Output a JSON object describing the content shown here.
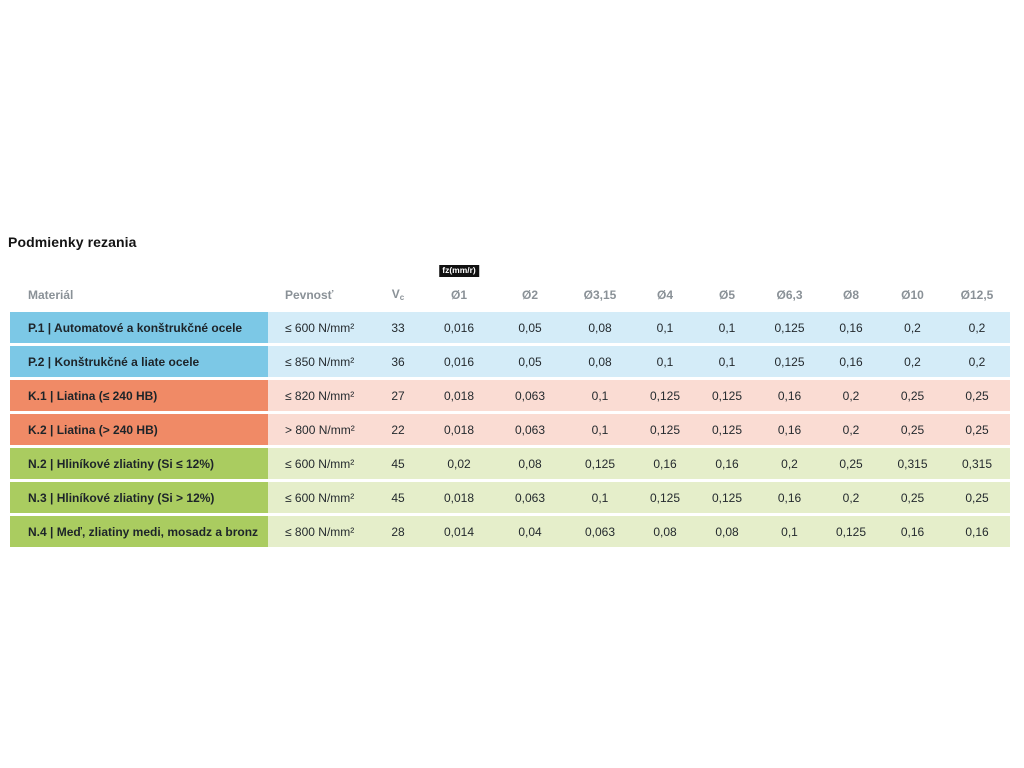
{
  "page": {
    "title": "Podmienky rezania"
  },
  "table": {
    "badge_label": "fz(mm/r)",
    "badge_colors": {
      "background": "#111111",
      "text": "#ffffff"
    },
    "headers": {
      "material": "Materiál",
      "pevnost": "Pevnosť",
      "vc_base": "V",
      "vc_sub": "c",
      "diameters": [
        "Ø1",
        "Ø2",
        "Ø3,15",
        "Ø4",
        "Ø5",
        "Ø6,3",
        "Ø8",
        "Ø10",
        "Ø12,5"
      ]
    },
    "header_text_color": "#8a9197",
    "body_text_color": "#242a2e",
    "group_colors": {
      "P": {
        "label_bg": "#7cc8e6",
        "cells_bg": "#d4ecf8"
      },
      "K": {
        "label_bg": "#f08a66",
        "cells_bg": "#fadcd3"
      },
      "N": {
        "label_bg": "#aacc60",
        "cells_bg": "#e5eeca"
      }
    },
    "rows": [
      {
        "group": "P",
        "material": "P.1 | Automatové a konštrukčné ocele",
        "pevnost": "≤ 600 N/mm²",
        "vc": "33",
        "values": [
          "0,016",
          "0,05",
          "0,08",
          "0,1",
          "0,1",
          "0,125",
          "0,16",
          "0,2",
          "0,2"
        ]
      },
      {
        "group": "P",
        "material": "P.2 | Konštrukčné a liate ocele",
        "pevnost": "≤ 850 N/mm²",
        "vc": "36",
        "values": [
          "0,016",
          "0,05",
          "0,08",
          "0,1",
          "0,1",
          "0,125",
          "0,16",
          "0,2",
          "0,2"
        ]
      },
      {
        "group": "K",
        "material": "K.1 | Liatina (≤ 240 HB)",
        "pevnost": "≤ 820 N/mm²",
        "vc": "27",
        "values": [
          "0,018",
          "0,063",
          "0,1",
          "0,125",
          "0,125",
          "0,16",
          "0,2",
          "0,25",
          "0,25"
        ]
      },
      {
        "group": "K",
        "material": "K.2 | Liatina (> 240 HB)",
        "pevnost": "> 800 N/mm²",
        "vc": "22",
        "values": [
          "0,018",
          "0,063",
          "0,1",
          "0,125",
          "0,125",
          "0,16",
          "0,2",
          "0,25",
          "0,25"
        ]
      },
      {
        "group": "N",
        "material": "N.2 | Hliníkové zliatiny (Si ≤ 12%)",
        "pevnost": "≤ 600 N/mm²",
        "vc": "45",
        "values": [
          "0,02",
          "0,08",
          "0,125",
          "0,16",
          "0,16",
          "0,2",
          "0,25",
          "0,315",
          "0,315"
        ]
      },
      {
        "group": "N",
        "material": "N.3 | Hliníkové zliatiny (Si > 12%)",
        "pevnost": "≤ 600 N/mm²",
        "vc": "45",
        "values": [
          "0,018",
          "0,063",
          "0,1",
          "0,125",
          "0,125",
          "0,16",
          "0,2",
          "0,25",
          "0,25"
        ]
      },
      {
        "group": "N",
        "material": "N.4 | Meď, zliatiny medi, mosadz a bronz",
        "pevnost": "≤ 800 N/mm²",
        "vc": "28",
        "values": [
          "0,014",
          "0,04",
          "0,063",
          "0,08",
          "0,08",
          "0,1",
          "0,125",
          "0,16",
          "0,16"
        ]
      }
    ]
  }
}
